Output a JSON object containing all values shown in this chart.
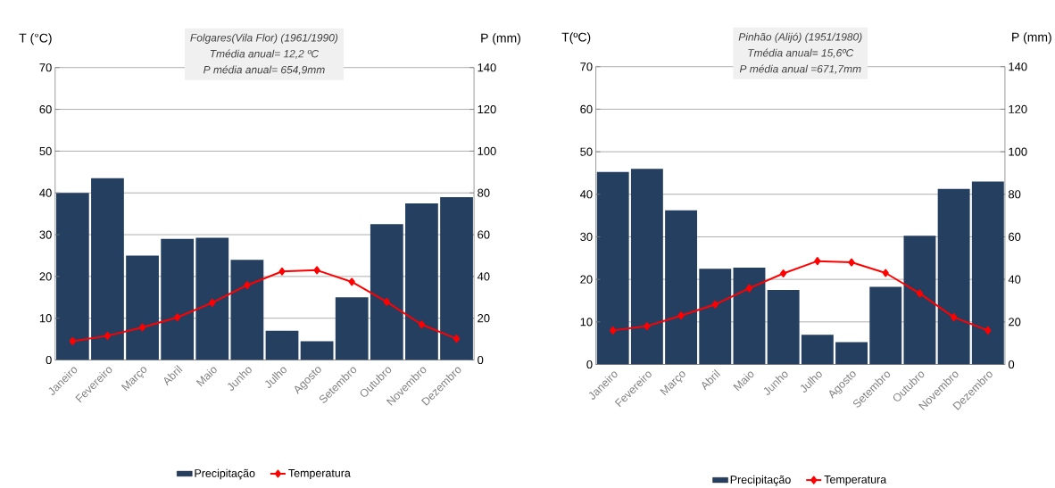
{
  "chart_data": [
    {
      "type": "bar",
      "title": "Folgares(Vila  Flor)  (1961/1990)",
      "annotations": [
        "Tmédia anual= 12,2 ºC",
        "P  média anual= 654,9mm"
      ],
      "ylabel": "T (°C)",
      "y2label": "P (mm)",
      "categories": [
        "Janeiro",
        "Fevereiro",
        "Março",
        "Abril",
        "Maio",
        "Junho",
        "Julho",
        "Agosto",
        "Setembro",
        "Outubro",
        "Novembro",
        "Dezembro"
      ],
      "series": [
        {
          "name": "Precipitação",
          "axis": "y2",
          "color": "#243f60",
          "values": [
            80,
            87,
            50,
            58,
            58.5,
            48,
            14,
            9,
            30,
            65,
            75,
            78
          ]
        },
        {
          "name": "Temperatura",
          "type": "line",
          "color": "#ff0000",
          "values": [
            4.5,
            5.8,
            7.8,
            10.2,
            13.7,
            17.9,
            21.2,
            21.5,
            18.7,
            13.9,
            8.5,
            5.1
          ]
        }
      ],
      "ylim": [
        0,
        70
      ],
      "yticks": [
        0,
        10,
        20,
        30,
        40,
        50,
        60,
        70
      ],
      "y2lim": [
        0,
        140
      ],
      "y2ticks": [
        0,
        20,
        40,
        60,
        80,
        100,
        120,
        140
      ],
      "grid": "y",
      "legend": "bottom",
      "marker": "diamond"
    },
    {
      "type": "bar",
      "title": "Pinhão (Alijó) (1951/1980)",
      "annotations": [
        "Tmédia anual= 15,6ºC",
        "P  média anual =671,7mm"
      ],
      "ylabel": "T(ºC)",
      "y2label": "P (mm)",
      "categories": [
        "Janeiro",
        "Fevereiro",
        "Março",
        "Abril",
        "Maio",
        "Junho",
        "Julho",
        "Agosto",
        "Setembro",
        "Outubro",
        "Novembro",
        "Dezembro"
      ],
      "series": [
        {
          "name": "Precipitação",
          "axis": "y2",
          "color": "#243f60",
          "values": [
            90.5,
            92,
            72.5,
            45,
            45.5,
            35,
            14,
            10.5,
            36.5,
            60.5,
            82.5,
            86
          ]
        },
        {
          "name": "Temperatura",
          "type": "line",
          "color": "#ff0000",
          "values": [
            8.0,
            9.0,
            11.5,
            14.1,
            17.9,
            21.4,
            24.3,
            24.0,
            21.5,
            16.7,
            11.1,
            8.0
          ]
        }
      ],
      "ylim": [
        0,
        70
      ],
      "yticks": [
        0,
        10,
        20,
        30,
        40,
        50,
        60,
        70
      ],
      "y2lim": [
        0,
        140
      ],
      "y2ticks": [
        0,
        20,
        40,
        60,
        80,
        100,
        120,
        140
      ],
      "grid": "y",
      "legend": "bottom",
      "marker": "diamond"
    }
  ]
}
